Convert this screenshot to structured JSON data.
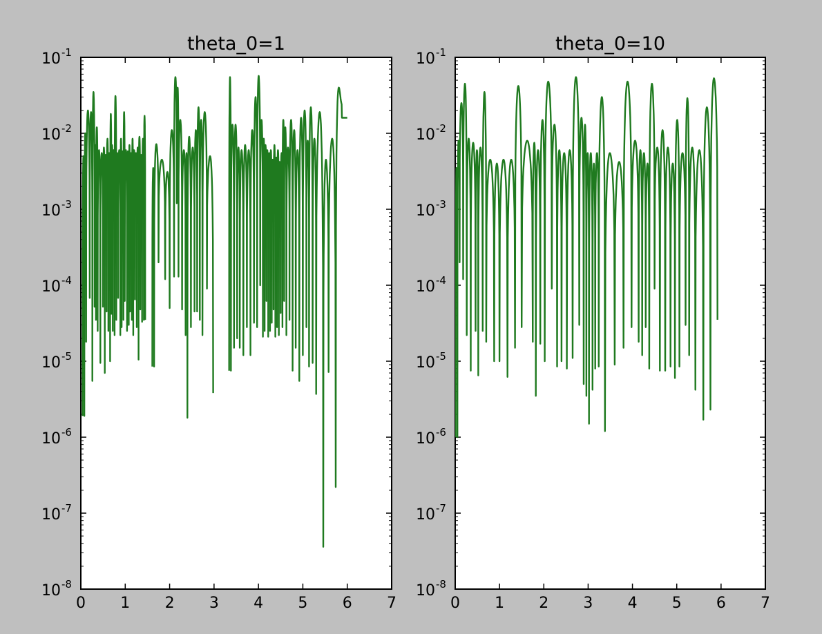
{
  "chart_data": [
    {
      "type": "line",
      "title": "theta_0=1",
      "yscale": "log",
      "xlim": [
        0,
        7
      ],
      "ylim": [
        1e-08,
        0.1
      ],
      "x_ticks": [
        "0",
        "1",
        "2",
        "3",
        "4",
        "5",
        "6",
        "7"
      ],
      "y_ticks": [
        {
          "base": "10",
          "exp": "-8"
        },
        {
          "base": "10",
          "exp": "-7"
        },
        {
          "base": "10",
          "exp": "-6"
        },
        {
          "base": "10",
          "exp": "-5"
        },
        {
          "base": "10",
          "exp": "-4"
        },
        {
          "base": "10",
          "exp": "-3"
        },
        {
          "base": "10",
          "exp": "-2"
        },
        {
          "base": "10",
          "exp": "-1"
        }
      ],
      "line_color": "#1f7a1f",
      "series": [
        {
          "x": [
            0.08,
            0.12,
            0.2,
            0.26,
            0.31,
            0.34,
            0.38,
            0.44,
            0.5,
            0.54,
            0.58,
            0.62,
            0.66,
            0.69,
            0.72,
            0.76,
            0.8,
            0.84,
            0.89,
            0.92,
            0.96,
            0.99,
            1.04,
            1.08,
            1.11,
            1.15,
            1.18,
            1.22,
            1.26,
            1.3,
            1.34,
            1.38,
            1.42,
            1.45
          ],
          "peak": [
            0.005,
            0.01,
            0.02,
            0.019,
            0.035,
            0.007,
            0.012,
            0.006,
            0.0055,
            0.0065,
            0.0052,
            0.0085,
            0.0055,
            0.018,
            0.007,
            0.006,
            0.031,
            0.0055,
            0.006,
            0.0085,
            0.0058,
            0.019,
            0.006,
            0.0058,
            0.007,
            0.0055,
            0.0085,
            0.006,
            0.0055,
            0.0065,
            0.009,
            0.0052,
            0.0085,
            0.017
          ],
          "dip": [
            1.9e-06,
            1.8e-05,
            6.8e-05,
            5.5e-06,
            5.2e-05,
            3.5e-05,
            2.5e-05,
            9.5e-06,
            5.2e-05,
            7e-06,
            4.5e-05,
            2.5e-05,
            1e-05,
            4.2e-05,
            2.5e-05,
            2.2e-05,
            3.5e-05,
            6.8e-05,
            2.2e-05,
            2.8e-05,
            3.5e-05,
            6.2e-05,
            2.5e-05,
            3e-05,
            4.5e-05,
            3.5e-05,
            2.2e-05,
            6.5e-05,
            2.8e-05,
            1.05e-05,
            4.8e-05,
            3.3e-05,
            3.5e-05,
            3.5e-05
          ]
        },
        {
          "x": [
            1.65,
            1.75,
            1.9,
            2.0,
            2.1,
            2.16,
            2.2,
            2.28,
            2.36,
            2.4,
            2.48,
            2.56,
            2.62,
            2.68,
            2.74,
            2.84,
            2.98
          ],
          "peak": [
            0.0035,
            0.0072,
            0.0045,
            0.0031,
            0.011,
            0.055,
            0.04,
            0.015,
            0.006,
            0.0055,
            0.009,
            0.0065,
            0.011,
            0.022,
            0.015,
            0.019,
            0.005
          ],
          "dip": [
            8.5e-06,
            0.0002,
            0.00012,
            5e-05,
            0.00013,
            0.0012,
            0.00013,
            4.8e-05,
            2.2e-05,
            1.8e-06,
            2.8e-05,
            4.5e-05,
            4.5e-05,
            3.5e-05,
            2.2e-05,
            9e-05,
            3.8e-06
          ]
        },
        {
          "x": [
            3.38,
            3.45,
            3.52,
            3.58,
            3.66,
            3.74,
            3.82,
            3.9,
            3.97,
            4.04,
            4.1,
            4.14,
            4.18,
            4.22,
            4.26,
            4.3,
            4.34,
            4.38,
            4.42,
            4.46,
            4.5,
            4.54,
            4.58,
            4.63,
            4.7,
            4.77,
            4.84,
            4.92,
            5.0,
            5.08,
            5.14,
            5.22,
            5.3,
            5.46,
            5.58,
            5.74,
            5.88,
            6.0
          ],
          "peak": [
            0.055,
            0.013,
            0.013,
            0.0065,
            0.006,
            0.007,
            0.006,
            0.011,
            0.03,
            0.057,
            0.015,
            0.0085,
            0.007,
            0.006,
            0.0055,
            0.006,
            0.0045,
            0.007,
            0.0048,
            0.006,
            0.0042,
            0.0055,
            0.015,
            0.012,
            0.0065,
            0.015,
            0.011,
            0.006,
            0.016,
            0.02,
            0.008,
            0.022,
            0.0085,
            0.019,
            0.0045,
            0.0085,
            0.04,
            0.016
          ],
          "dip": [
            7.5e-06,
            1.5e-05,
            2e-05,
            1.5e-05,
            1.2e-05,
            2.8e-05,
            1.2e-05,
            3.2e-05,
            2.8e-05,
            0.0001,
            2.1e-05,
            2.5e-05,
            6.2e-05,
            2.1e-05,
            2.5e-05,
            3.2e-05,
            4.8e-05,
            2.1e-05,
            2.8e-05,
            2.2e-05,
            4.3e-05,
            2.8e-05,
            6.2e-05,
            2.2e-05,
            3.5e-05,
            7.5e-06,
            1.5e-05,
            5.5e-06,
            1.2e-05,
            2.8e-05,
            8.5e-06,
            9.5e-06,
            3.7e-06,
            3.6e-08,
            7.2e-06,
            2.2e-07,
            0.016,
            0.016
          ]
        }
      ]
    },
    {
      "type": "line",
      "title": "theta_0=10",
      "yscale": "log",
      "xlim": [
        0,
        7
      ],
      "ylim": [
        1e-08,
        0.1
      ],
      "x_ticks": [
        "0",
        "1",
        "2",
        "3",
        "4",
        "5",
        "6",
        "7"
      ],
      "y_ticks": [
        {
          "base": "10",
          "exp": "-8"
        },
        {
          "base": "10",
          "exp": "-7"
        },
        {
          "base": "10",
          "exp": "-6"
        },
        {
          "base": "10",
          "exp": "-5"
        },
        {
          "base": "10",
          "exp": "-4"
        },
        {
          "base": "10",
          "exp": "-3"
        },
        {
          "base": "10",
          "exp": "-2"
        },
        {
          "base": "10",
          "exp": "-1"
        }
      ],
      "line_color": "#1f7a1f",
      "series": [
        {
          "x": [
            0.05,
            0.1,
            0.18,
            0.26,
            0.35,
            0.46,
            0.52,
            0.62,
            0.7,
            0.88,
            1.0,
            1.18,
            1.35,
            1.5,
            1.75,
            1.82,
            1.92,
            2.02,
            2.18,
            2.3,
            2.4,
            2.52,
            2.65,
            2.8,
            2.9,
            2.96,
            3.02,
            3.1,
            3.16,
            3.24,
            3.38,
            3.6,
            3.8,
            3.98,
            4.14,
            4.22,
            4.3,
            4.38,
            4.5,
            4.62,
            4.74,
            4.86,
            4.96,
            5.06,
            5.2,
            5.28,
            5.42,
            5.6,
            5.76,
            5.92
          ],
          "peak": [
            0.0035,
            0.008,
            0.025,
            0.045,
            0.0085,
            0.0075,
            0.006,
            0.0065,
            0.035,
            0.0045,
            0.004,
            0.0045,
            0.0045,
            0.042,
            0.008,
            0.0075,
            0.006,
            0.015,
            0.048,
            0.013,
            0.006,
            0.0055,
            0.006,
            0.055,
            0.016,
            0.013,
            0.0055,
            0.0055,
            0.004,
            0.0055,
            0.03,
            0.0055,
            0.0042,
            0.048,
            0.008,
            0.006,
            0.0055,
            0.004,
            0.045,
            0.0065,
            0.011,
            0.0065,
            0.004,
            0.015,
            0.0055,
            0.029,
            0.0065,
            0.006,
            0.022,
            0.053
          ],
          "dip": [
            1e-06,
            0.0002,
            0.00012,
            2.2e-05,
            7.5e-06,
            2.5e-05,
            6.5e-06,
            2.5e-05,
            1.8e-05,
            1e-05,
            1e-05,
            6.2e-06,
            1.5e-05,
            2.8e-05,
            1.8e-05,
            3.5e-06,
            1.7e-05,
            1e-05,
            9e-05,
            8.5e-06,
            1e-05,
            8e-06,
            1.1e-05,
            3e-05,
            5e-06,
            3.5e-06,
            1.5e-06,
            4.2e-06,
            8e-06,
            8.5e-06,
            1.2e-06,
            9e-06,
            1.5e-05,
            2.8e-05,
            1.8e-05,
            1.2e-05,
            2.8e-05,
            8e-06,
            9e-05,
            7.5e-06,
            7.5e-06,
            8.5e-06,
            6e-06,
            8.5e-06,
            3e-05,
            1.2e-05,
            4.2e-06,
            1.7e-06,
            2.3e-06,
            3.5e-05
          ]
        }
      ]
    }
  ]
}
